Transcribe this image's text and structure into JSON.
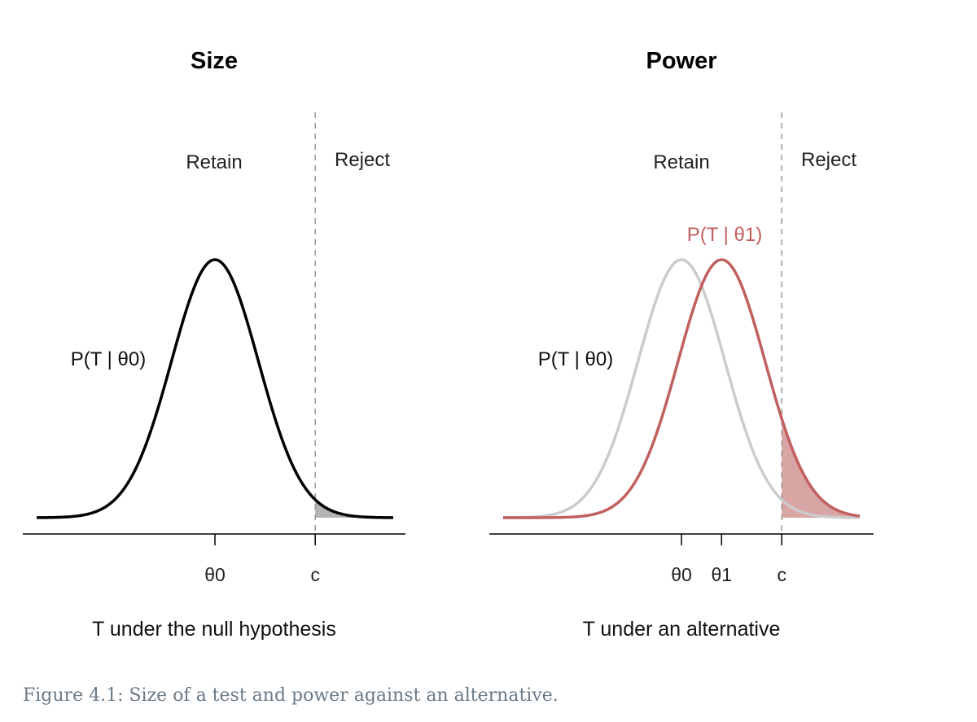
{
  "chart_data": [
    {
      "type": "line",
      "title": "Size",
      "xlabel": "T under the null hypothesis",
      "regions": {
        "left": "Retain",
        "right": "Reject"
      },
      "xlim": [
        -3.2,
        3.2
      ],
      "critical_value": 1.8,
      "x_ticks": [
        {
          "value": 0,
          "label": "θ0"
        },
        {
          "value": 1.8,
          "label": "c"
        }
      ],
      "series": [
        {
          "name": "null",
          "label": "P(T | θ0)",
          "mean": 0,
          "sd": 0.78,
          "color": "#000000",
          "shaded_tail": true
        }
      ],
      "shade_color": "#b3b3b3"
    },
    {
      "type": "line",
      "title": "Power",
      "xlabel": "T under an alternative",
      "regions": {
        "left": "Retain",
        "right": "Reject"
      },
      "xlim": [
        -3.2,
        3.2
      ],
      "critical_value": 1.8,
      "x_ticks": [
        {
          "value": 0,
          "label": "θ0"
        },
        {
          "value": 0.72,
          "label": "θ1"
        },
        {
          "value": 1.8,
          "label": "c"
        }
      ],
      "series": [
        {
          "name": "null",
          "label": "P(T | θ0)",
          "mean": 0,
          "sd": 0.78,
          "color": "#cccccc",
          "shaded_tail": false
        },
        {
          "name": "alternative",
          "label": "P(T | θ1)",
          "mean": 0.72,
          "sd": 0.78,
          "color": "#c0605f",
          "shaded_tail": true
        }
      ],
      "shade_color": "#d9a4a4"
    }
  ],
  "caption": "Figure 4.1: Size of a test and power against an alternative."
}
